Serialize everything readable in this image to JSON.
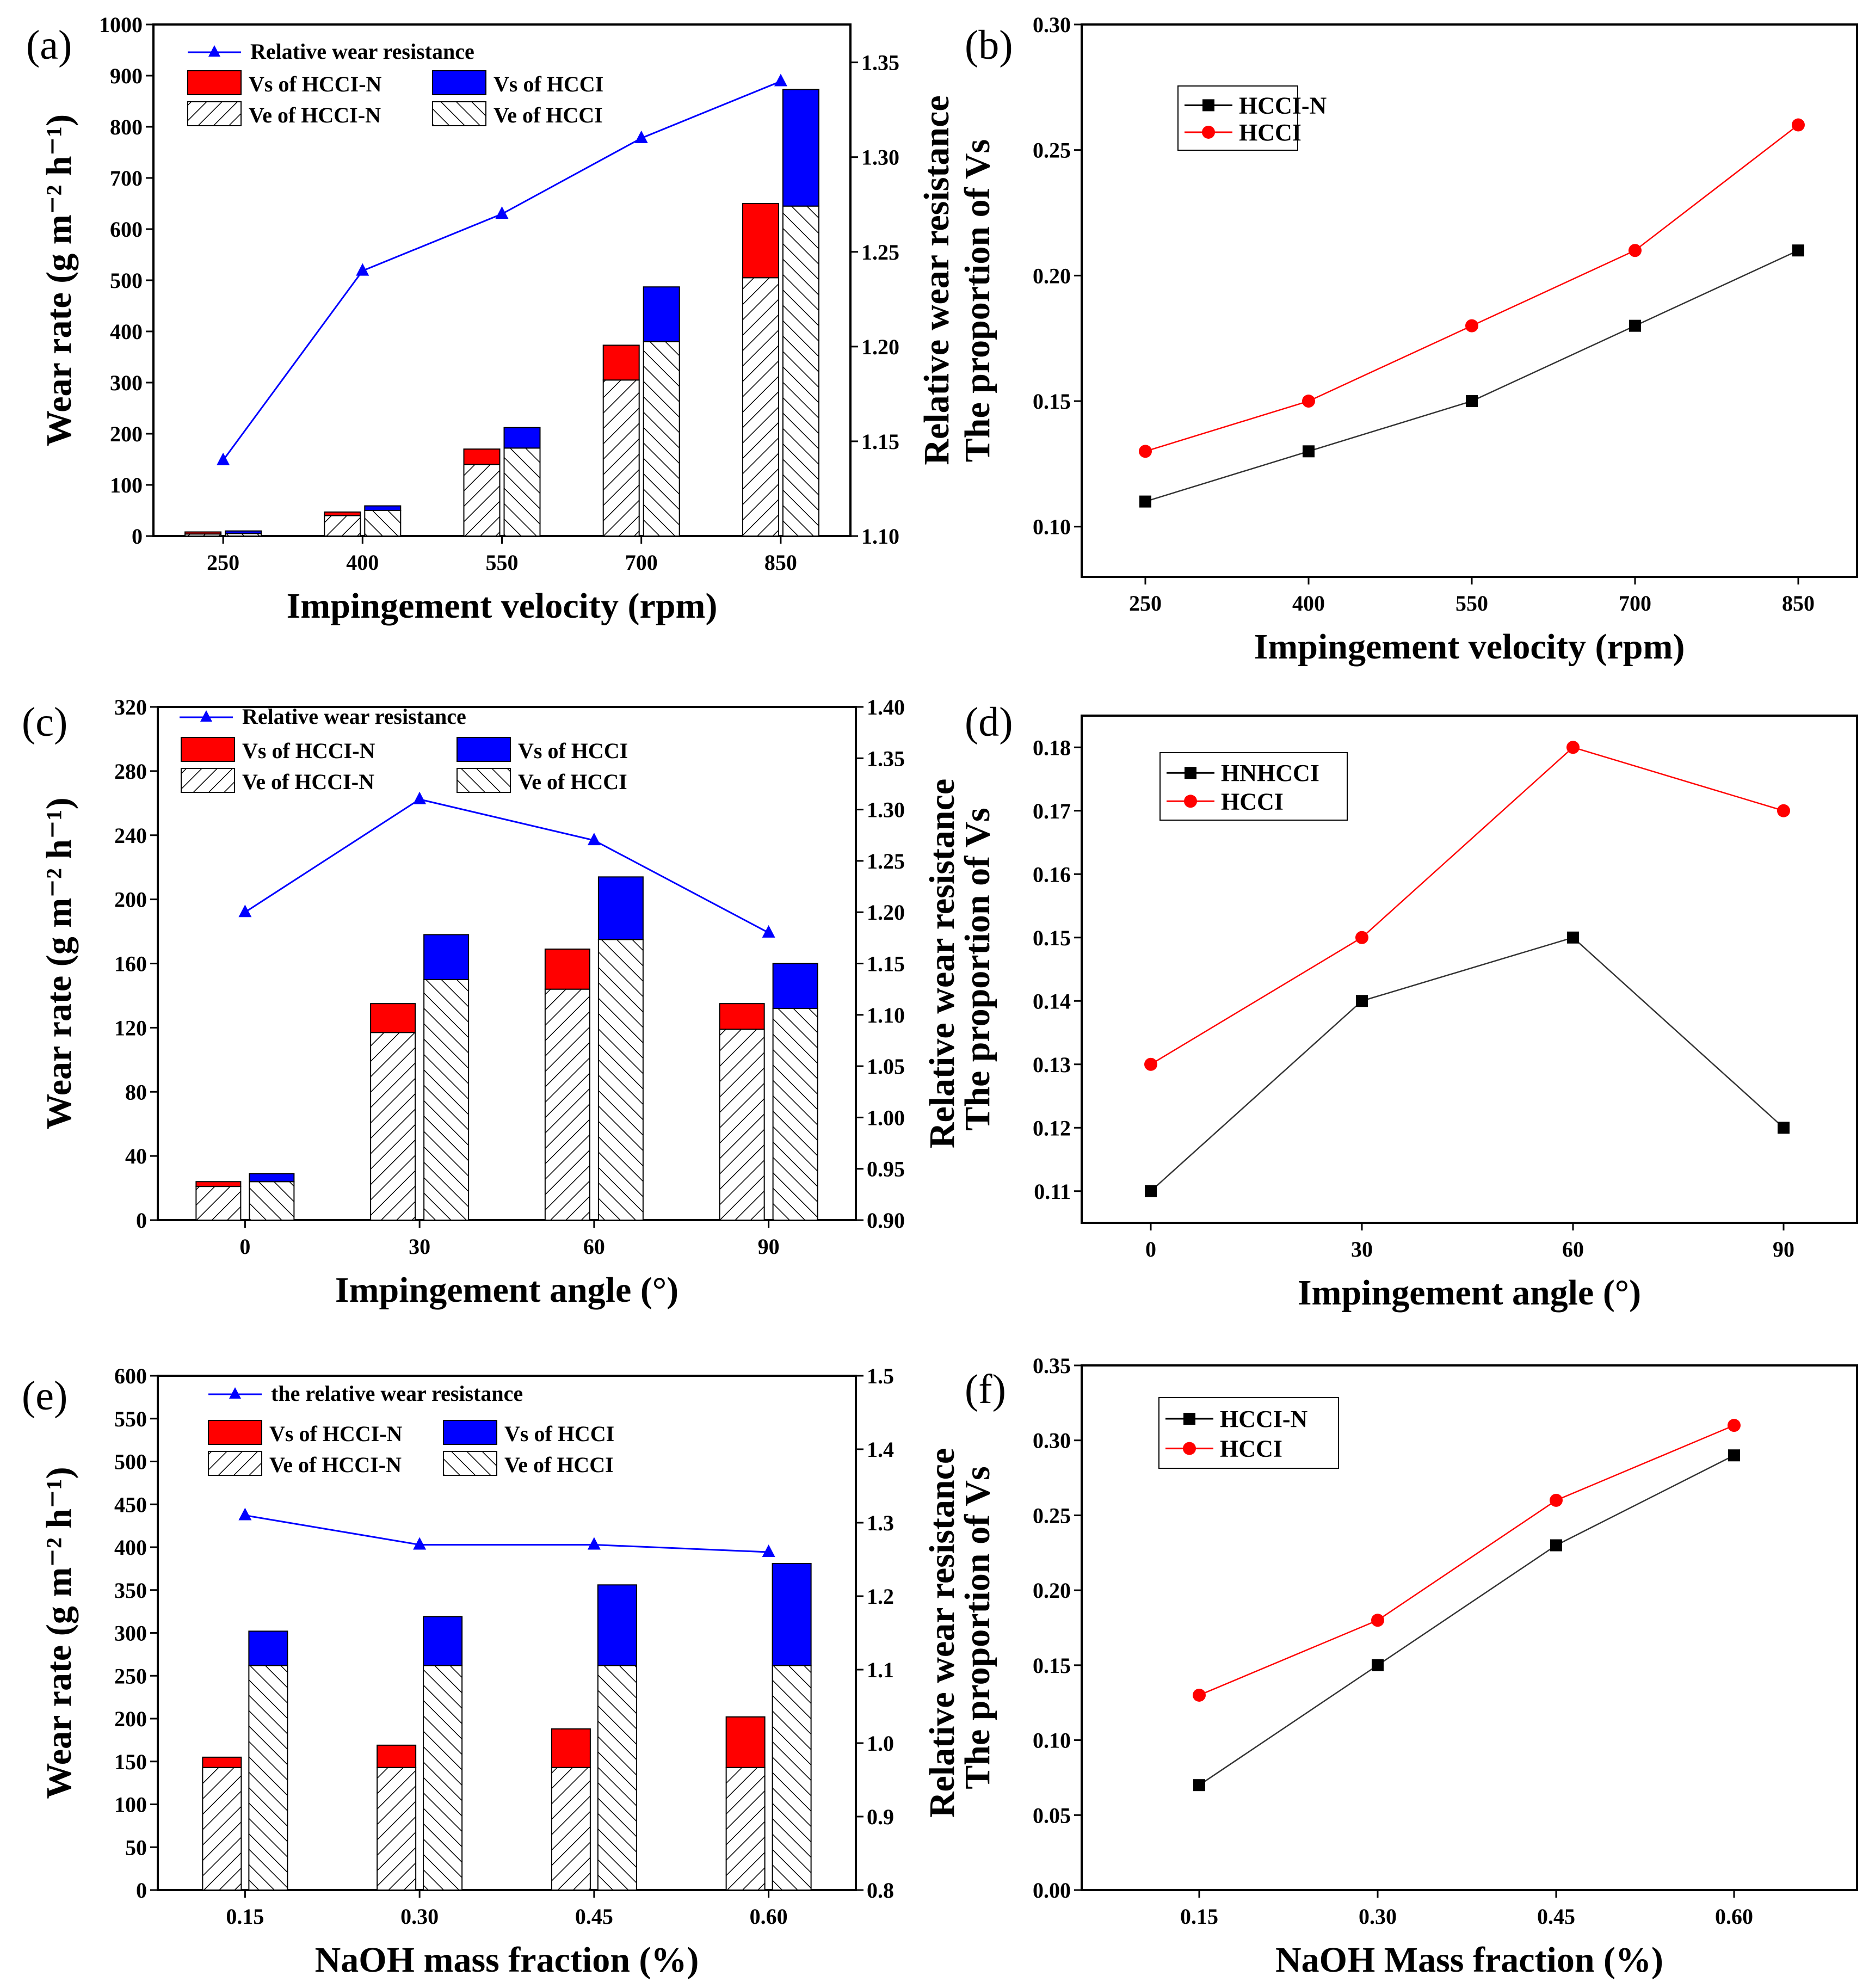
{
  "colors": {
    "vs_hccin": "#ff0000",
    "vs_hcci": "#0000ff",
    "line_blue": "#0000ff",
    "hcci_red": "#ff0000",
    "hccin_black": "#000000"
  },
  "chart_data": [
    {
      "id": "a",
      "panel_label": "(a)",
      "type": "bar+line",
      "xlabel": "Impingement velocity (rpm)",
      "ylabel": "Wear rate (g m⁻² h⁻¹)",
      "y2label": "Relative wear resistance",
      "categories": [
        "250",
        "400",
        "550",
        "700",
        "850"
      ],
      "ylim": [
        0,
        1000
      ],
      "yticks": [
        "0",
        "100",
        "200",
        "300",
        "400",
        "500",
        "600",
        "700",
        "800",
        "900",
        "1000"
      ],
      "y2lim": [
        1.1,
        1.37
      ],
      "y2ticks": [
        "1.10",
        "1.15",
        "1.20",
        "1.25",
        "1.30",
        "1.35"
      ],
      "series": [
        {
          "name": "Ve of HCCI-N",
          "values": [
            4,
            40,
            140,
            305,
            505
          ]
        },
        {
          "name": "Vs of HCCI-N",
          "values": [
            4,
            7,
            30,
            68,
            145
          ]
        },
        {
          "name": "Ve of HCCI",
          "values": [
            5,
            50,
            172,
            380,
            645
          ]
        },
        {
          "name": "Vs of HCCI",
          "values": [
            5,
            9,
            40,
            107,
            228
          ]
        },
        {
          "name": "Relative wear resistance",
          "values": [
            1.14,
            1.24,
            1.27,
            1.31,
            1.34
          ]
        }
      ],
      "legend": {
        "line": "Relative wear resistance",
        "vs_n": "Vs of HCCI-N",
        "vs": "Vs of HCCI",
        "ve_n": "Ve of HCCI-N",
        "ve": "Ve of HCCI"
      }
    },
    {
      "id": "b",
      "panel_label": "(b)",
      "type": "line",
      "xlabel": "Impingement velocity (rpm)",
      "ylabel": "The proportion of  Vs",
      "categories": [
        "250",
        "400",
        "550",
        "700",
        "850"
      ],
      "ylim": [
        0.08,
        0.3
      ],
      "yticks": [
        "0.10",
        "0.15",
        "0.20",
        "0.25",
        "0.30"
      ],
      "series": [
        {
          "name": "HCCI-N",
          "values": [
            0.11,
            0.13,
            0.15,
            0.18,
            0.21
          ]
        },
        {
          "name": "HCCI",
          "values": [
            0.13,
            0.15,
            0.18,
            0.21,
            0.26
          ]
        }
      ]
    },
    {
      "id": "c",
      "panel_label": "(c)",
      "type": "bar+line",
      "xlabel": "Impingement angle (°)",
      "ylabel": "Wear rate (g m⁻² h⁻¹)",
      "y2label": "Relative wear resistance",
      "categories": [
        "0",
        "30",
        "60",
        "90"
      ],
      "ylim": [
        0,
        320
      ],
      "yticks": [
        "0",
        "40",
        "80",
        "120",
        "160",
        "200",
        "240",
        "280",
        "320"
      ],
      "y2lim": [
        0.9,
        1.4
      ],
      "y2ticks": [
        "0.90",
        "0.95",
        "1.00",
        "1.05",
        "1.10",
        "1.15",
        "1.20",
        "1.25",
        "1.30",
        "1.35",
        "1.40"
      ],
      "series": [
        {
          "name": "Ve of HCCI-N",
          "values": [
            21,
            117,
            144,
            119
          ]
        },
        {
          "name": "Vs of HCCI-N",
          "values": [
            3,
            18,
            25,
            16
          ]
        },
        {
          "name": "Ve of HCCI",
          "values": [
            24,
            150,
            175,
            132
          ]
        },
        {
          "name": "Vs of HCCI",
          "values": [
            5,
            28,
            39,
            28
          ]
        },
        {
          "name": "Relative wear resistance",
          "values": [
            1.2,
            1.31,
            1.27,
            1.18
          ]
        }
      ],
      "legend": {
        "line": "Relative wear resistance",
        "vs_n": "Vs of HCCI-N",
        "vs": "Vs of HCCI",
        "ve_n": "Ve of HCCI-N",
        "ve": "Ve of HCCI"
      }
    },
    {
      "id": "d",
      "panel_label": "(d)",
      "type": "line",
      "xlabel": "Impingement angle (°)",
      "ylabel": "The proportion of  Vs",
      "categories": [
        "0",
        "30",
        "60",
        "90"
      ],
      "ylim": [
        0.105,
        0.185
      ],
      "yticks": [
        "0.11",
        "0.12",
        "0.13",
        "0.14",
        "0.15",
        "0.16",
        "0.17",
        "0.18"
      ],
      "series": [
        {
          "name": "HNHCCI",
          "values": [
            0.11,
            0.14,
            0.15,
            0.12
          ]
        },
        {
          "name": "HCCI",
          "values": [
            0.13,
            0.15,
            0.18,
            0.17
          ]
        }
      ]
    },
    {
      "id": "e",
      "panel_label": "(e)",
      "type": "bar+line",
      "xlabel": "NaOH mass fraction (%)",
      "ylabel": "Wear rate (g m⁻² h⁻¹)",
      "y2label": "Relative wear resistance",
      "categories": [
        "0.15",
        "0.30",
        "0.45",
        "0.60"
      ],
      "ylim": [
        0,
        600
      ],
      "yticks": [
        "0",
        "50",
        "100",
        "150",
        "200",
        "250",
        "300",
        "350",
        "400",
        "450",
        "500",
        "550",
        "600"
      ],
      "y2lim": [
        0.8,
        1.5
      ],
      "y2ticks": [
        "0.8",
        "0.9",
        "1.0",
        "1.1",
        "1.2",
        "1.3",
        "1.4",
        "1.5"
      ],
      "series": [
        {
          "name": "Ve of HCCI-N",
          "values": [
            143,
            143,
            143,
            143
          ]
        },
        {
          "name": "Vs of HCCI-N",
          "values": [
            12,
            26,
            45,
            59
          ]
        },
        {
          "name": "Ve of HCCI",
          "values": [
            262,
            262,
            262,
            262
          ]
        },
        {
          "name": "Vs of HCCI",
          "values": [
            40,
            57,
            94,
            119
          ]
        },
        {
          "name": "the relative wear resistance",
          "values": [
            1.31,
            1.27,
            1.27,
            1.26
          ]
        }
      ],
      "legend": {
        "line": "the relative wear resistance",
        "vs_n": "Vs of HCCI-N",
        "vs": "Vs of HCCI",
        "ve_n": "Ve of HCCI-N",
        "ve": "Ve of HCCI"
      }
    },
    {
      "id": "f",
      "panel_label": "(f)",
      "type": "line",
      "xlabel": "NaOH Mass fraction (%)",
      "ylabel": "The proportion of  Vs",
      "categories": [
        "0.15",
        "0.30",
        "0.45",
        "0.60"
      ],
      "ylim": [
        0,
        0.35
      ],
      "yticks": [
        "0.00",
        "0.05",
        "0.10",
        "0.15",
        "0.20",
        "0.25",
        "0.30",
        "0.35"
      ],
      "series": [
        {
          "name": "HCCI-N",
          "values": [
            0.07,
            0.15,
            0.23,
            0.29
          ]
        },
        {
          "name": "HCCI",
          "values": [
            0.13,
            0.18,
            0.26,
            0.31
          ]
        }
      ]
    }
  ]
}
